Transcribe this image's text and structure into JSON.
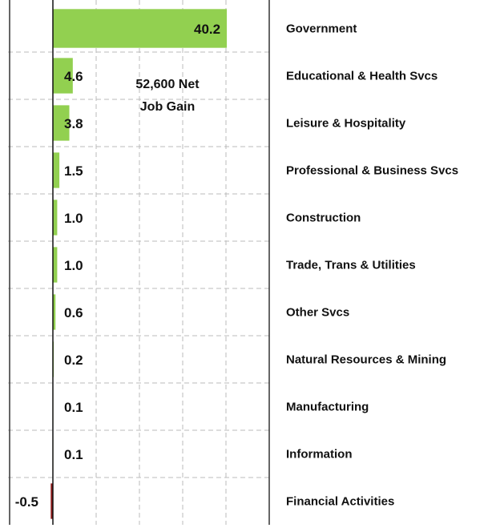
{
  "chart_data": {
    "type": "bar",
    "orientation": "horizontal",
    "categories": [
      "Government",
      "Educational &  Health Svcs",
      "Leisure &  Hospitality",
      "Professional &  Business Svcs",
      "Construction",
      "Trade, Trans &  Utilities",
      "Other Svcs",
      "Natural Resources &  Mining",
      "Manufacturing",
      "Information",
      "Financial Activities"
    ],
    "values": [
      40.2,
      4.6,
      3.8,
      1.5,
      1.0,
      1.0,
      0.6,
      0.2,
      0.1,
      0.1,
      -0.5
    ],
    "value_labels": [
      "40.2",
      "4.6",
      "3.8",
      "1.5",
      "1.0",
      "1.0",
      "0.6",
      "0.2",
      "0.1",
      "0.1",
      "-0.5"
    ],
    "color": "#92d050",
    "negative_color": "#8b1a1a",
    "xlim": [
      -10,
      50
    ],
    "xticks": [
      -10,
      0,
      10,
      20,
      30,
      40,
      50
    ],
    "grid": true,
    "annotation": [
      "52,600 Net",
      "Job Gain"
    ]
  }
}
